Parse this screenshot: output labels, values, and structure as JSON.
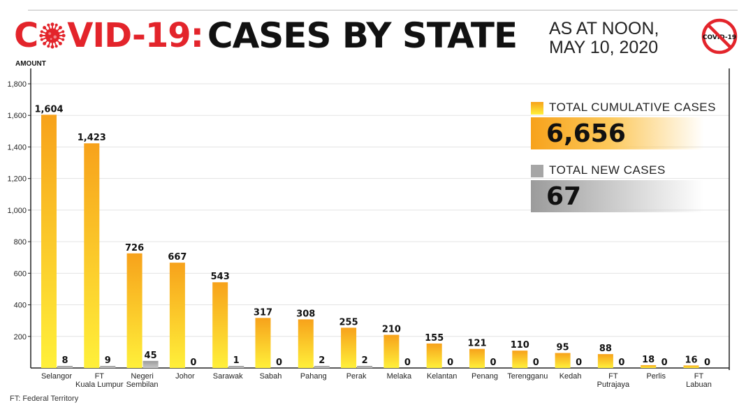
{
  "header": {
    "title_red": "COVID-19:",
    "title_black": "CASES BY STATE",
    "as_at_line1": "AS AT NOON,",
    "as_at_line2": "MAY 10, 2020",
    "badge_text": "COVID-19"
  },
  "legend": {
    "cumulative_label": "TOTAL CUMULATIVE CASES",
    "cumulative_total": "6,656",
    "new_label": "TOTAL NEW CASES",
    "new_total": "67"
  },
  "footnote": "FT: Federal Territory",
  "colors": {
    "brand_red": "#e3242b",
    "bar_top": "#f7a21b",
    "bar_bottom": "#fff03a",
    "new_bar": "#a6a6a6"
  },
  "chart_data": {
    "type": "bar",
    "ylabel": "AMOUNT",
    "xlabel": "",
    "ylim": [
      0,
      1800
    ],
    "yticks": [
      200,
      400,
      600,
      800,
      1000,
      1200,
      1400,
      1600,
      1800
    ],
    "ytick_labels": [
      "200",
      "400",
      "600",
      "800",
      "1,000",
      "1,200",
      "1,400",
      "1,600",
      "1,800"
    ],
    "grid": true,
    "categories": [
      [
        "Selangor"
      ],
      [
        "FT",
        "Kuala Lumpur"
      ],
      [
        "Negeri",
        "Sembilan"
      ],
      [
        "Johor"
      ],
      [
        "Sarawak"
      ],
      [
        "Sabah"
      ],
      [
        "Pahang"
      ],
      [
        "Perak"
      ],
      [
        "Melaka"
      ],
      [
        "Kelantan"
      ],
      [
        "Penang"
      ],
      [
        "Terengganu"
      ],
      [
        "Kedah"
      ],
      [
        "FT",
        "Putrajaya"
      ],
      [
        "Perlis"
      ],
      [
        "FT",
        "Labuan"
      ]
    ],
    "series": [
      {
        "name": "TOTAL CUMULATIVE CASES",
        "values": [
          1604,
          1423,
          726,
          667,
          543,
          317,
          308,
          255,
          210,
          155,
          121,
          110,
          95,
          88,
          18,
          16
        ],
        "labels": [
          "1,604",
          "1,423",
          "726",
          "667",
          "543",
          "317",
          "308",
          "255",
          "210",
          "155",
          "121",
          "110",
          "95",
          "88",
          "18",
          "16"
        ]
      },
      {
        "name": "TOTAL NEW CASES",
        "values": [
          8,
          9,
          45,
          0,
          1,
          0,
          2,
          2,
          0,
          0,
          0,
          0,
          0,
          0,
          0,
          0
        ],
        "labels": [
          "8",
          "9",
          "45",
          "0",
          "1",
          "0",
          "2",
          "2",
          "0",
          "0",
          "0",
          "0",
          "0",
          "0",
          "0",
          "0"
        ]
      }
    ]
  }
}
